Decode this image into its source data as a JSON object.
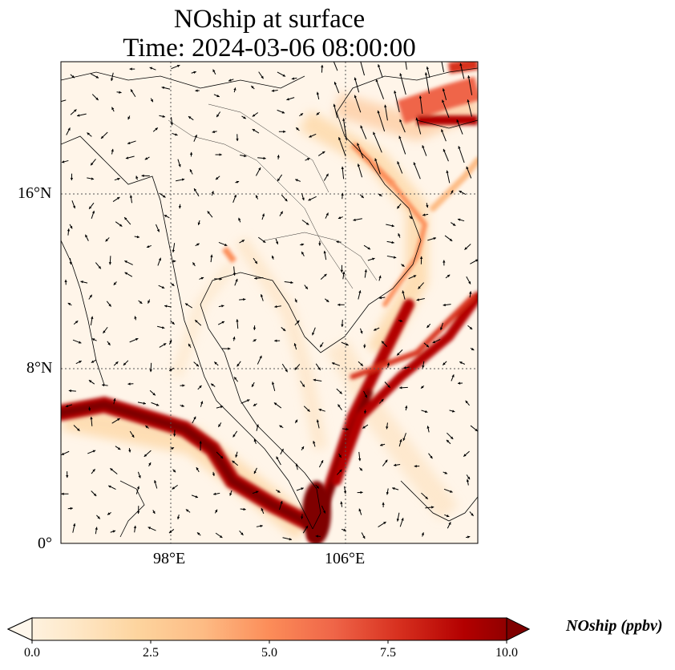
{
  "title": {
    "line1": "NOship at surface",
    "line2": "Time: 2024-03-06 08:00:00"
  },
  "map": {
    "variable": "NOship",
    "level": "surface",
    "region": "Mainland Southeast Asia and South China Sea",
    "lon_range_deg": [
      93,
      112
    ],
    "lat_range_deg": [
      0,
      22
    ],
    "lat_ticks": [
      "16°N",
      "8°N",
      "0°"
    ],
    "lon_ticks": [
      "98°E",
      "106°E"
    ],
    "gridlines": "dotted",
    "overlay": "wind vectors",
    "hotspots": [
      "shipping lane Strait of Malacca",
      "shipping lanes South China Sea",
      "Gulf of Tonkin / Hainan"
    ]
  },
  "colorbar": {
    "label": "NOship (ppbv)",
    "ticks": [
      "0.0",
      "2.5",
      "5.0",
      "7.5",
      "10.0"
    ],
    "min": 0,
    "max": 10,
    "extend": "both",
    "colormap": "OrRd",
    "colors": [
      "#fff7ec",
      "#fee8c8",
      "#fdd49e",
      "#fdbb84",
      "#fc8d59",
      "#ef6548",
      "#d7301f",
      "#b30000",
      "#7f0000"
    ]
  }
}
